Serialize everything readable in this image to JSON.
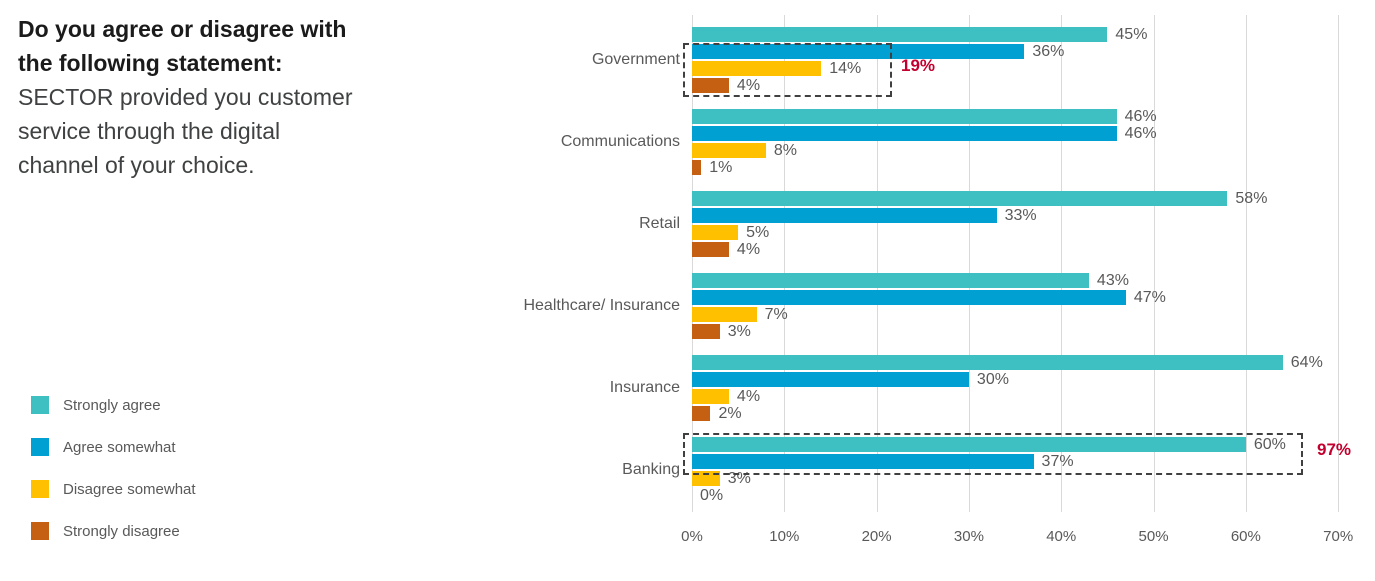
{
  "title": {
    "bold_lines": [
      "Do you agree or disagree with",
      "the following statement:"
    ],
    "normal_lines": [
      "SECTOR provided you customer",
      "service through the digital",
      "channel of your choice."
    ]
  },
  "legend": {
    "items": [
      {
        "label": "Strongly agree",
        "color": "#3EBFC1"
      },
      {
        "label": "Agree somewhat",
        "color": "#00A0D2"
      },
      {
        "label": "Disagree somewhat",
        "color": "#FFC000"
      },
      {
        "label": "Strongly disagree",
        "color": "#C55F11"
      }
    ]
  },
  "chart_data": {
    "type": "bar",
    "orientation": "horizontal",
    "categories": [
      "Government",
      "Communications",
      "Retail",
      "Healthcare/ Insurance",
      "Insurance",
      "Banking"
    ],
    "series": [
      {
        "name": "Strongly agree",
        "color": "#3EBFC1",
        "values": [
          45,
          46,
          58,
          43,
          64,
          60
        ]
      },
      {
        "name": "Agree somewhat",
        "color": "#00A0D2",
        "values": [
          36,
          46,
          33,
          47,
          30,
          37
        ]
      },
      {
        "name": "Disagree somewhat",
        "color": "#FFC000",
        "values": [
          14,
          8,
          5,
          7,
          4,
          3
        ]
      },
      {
        "name": "Strongly disagree",
        "color": "#C55F11",
        "values": [
          4,
          1,
          4,
          3,
          2,
          0
        ]
      }
    ],
    "value_suffix": "%",
    "x_ticks": [
      "0%",
      "10%",
      "20%",
      "30%",
      "40%",
      "50%",
      "60%",
      "70%"
    ],
    "xlim": [
      0,
      70
    ],
    "grid": "vertical-gridlines",
    "legend_position": "bottom-left",
    "annotations": [
      {
        "category": "Government",
        "label": "19%",
        "color": "#C3002F",
        "note": "dashed box highlighting disagree responses"
      },
      {
        "category": "Banking",
        "label": "97%",
        "color": "#C3002F",
        "note": "dashed box highlighting agree responses"
      }
    ]
  }
}
